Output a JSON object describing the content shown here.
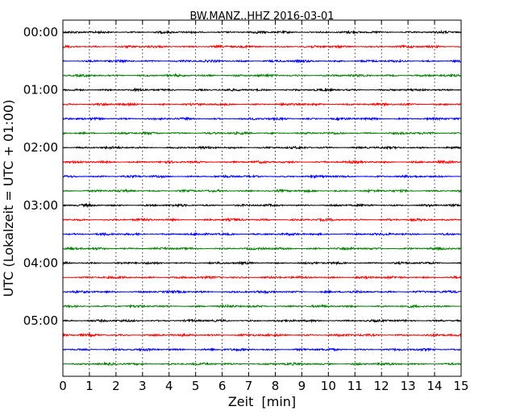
{
  "chart_data": {
    "type": "line",
    "title": "BW.MANZ..HHZ 2016-03-01",
    "xlabel": "Zeit  [min]",
    "ylabel": "UTC (Lokalzeit = UTC + 01:00)",
    "xlim": [
      0,
      15
    ],
    "x_ticks": [
      "0",
      "1",
      "2",
      "3",
      "4",
      "5",
      "6",
      "7",
      "8",
      "9",
      "10",
      "11",
      "12",
      "13",
      "14",
      "15"
    ],
    "y_tick_labels": [
      "00:00",
      "01:00",
      "02:00",
      "03:00",
      "04:00",
      "05:00"
    ],
    "grid": "vertical dotted",
    "trace_interval_minutes": 15,
    "trace_colors": [
      "#000000",
      "#ff0000",
      "#0000ff",
      "#008000"
    ],
    "series": [
      {
        "start": "00:00",
        "color": "#000000"
      },
      {
        "start": "00:15",
        "color": "#ff0000"
      },
      {
        "start": "00:30",
        "color": "#0000ff"
      },
      {
        "start": "00:45",
        "color": "#008000"
      },
      {
        "start": "01:00",
        "color": "#000000"
      },
      {
        "start": "01:15",
        "color": "#ff0000"
      },
      {
        "start": "01:30",
        "color": "#0000ff"
      },
      {
        "start": "01:45",
        "color": "#008000"
      },
      {
        "start": "02:00",
        "color": "#000000"
      },
      {
        "start": "02:15",
        "color": "#ff0000"
      },
      {
        "start": "02:30",
        "color": "#0000ff"
      },
      {
        "start": "02:45",
        "color": "#008000"
      },
      {
        "start": "03:00",
        "color": "#000000"
      },
      {
        "start": "03:15",
        "color": "#ff0000"
      },
      {
        "start": "03:30",
        "color": "#0000ff"
      },
      {
        "start": "03:45",
        "color": "#008000"
      },
      {
        "start": "04:00",
        "color": "#000000"
      },
      {
        "start": "04:15",
        "color": "#ff0000"
      },
      {
        "start": "04:30",
        "color": "#0000ff"
      },
      {
        "start": "04:45",
        "color": "#008000"
      },
      {
        "start": "05:00",
        "color": "#000000"
      },
      {
        "start": "05:15",
        "color": "#ff0000"
      },
      {
        "start": "05:30",
        "color": "#0000ff"
      },
      {
        "start": "05:45",
        "color": "#008000"
      }
    ]
  }
}
